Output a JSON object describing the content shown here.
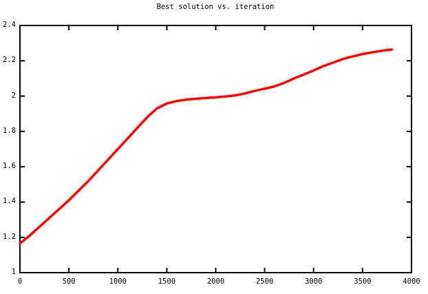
{
  "figure": {
    "background": "#ffffff",
    "border_color": "#000000"
  },
  "chart_data": {
    "type": "line",
    "title": "Best solution vs. iteration",
    "xlabel": "",
    "ylabel": "",
    "xlim": [
      0,
      4000
    ],
    "ylim": [
      1,
      2.4
    ],
    "xticks": [
      "0",
      "500",
      "1000",
      "1500",
      "2000",
      "2500",
      "3000",
      "3500",
      "4000"
    ],
    "yticks": [
      "1",
      "1.2",
      "1.4",
      "1.6",
      "1.8",
      "2",
      "2.2",
      "2.4"
    ],
    "grid": false,
    "legend": "none",
    "tick_style": "inward-mirrored",
    "series": [
      {
        "name": "best solution",
        "color": "#ff0000",
        "line_width": 3.5,
        "x": [
          0,
          100,
          200,
          300,
          400,
          500,
          600,
          700,
          800,
          900,
          1000,
          1100,
          1200,
          1300,
          1400,
          1500,
          1600,
          1700,
          1800,
          1900,
          2000,
          2100,
          2200,
          2300,
          2400,
          2500,
          2600,
          2700,
          2800,
          2900,
          3000,
          3100,
          3200,
          3300,
          3400,
          3500,
          3600,
          3700,
          3800
        ],
        "y": [
          1.165,
          1.21,
          1.26,
          1.31,
          1.36,
          1.41,
          1.465,
          1.52,
          1.58,
          1.64,
          1.7,
          1.76,
          1.82,
          1.88,
          1.93,
          1.958,
          1.972,
          1.98,
          1.985,
          1.989,
          1.993,
          1.998,
          2.004,
          2.015,
          2.03,
          2.042,
          2.055,
          2.075,
          2.1,
          2.122,
          2.145,
          2.17,
          2.19,
          2.21,
          2.225,
          2.238,
          2.248,
          2.257,
          2.264
        ]
      }
    ]
  }
}
